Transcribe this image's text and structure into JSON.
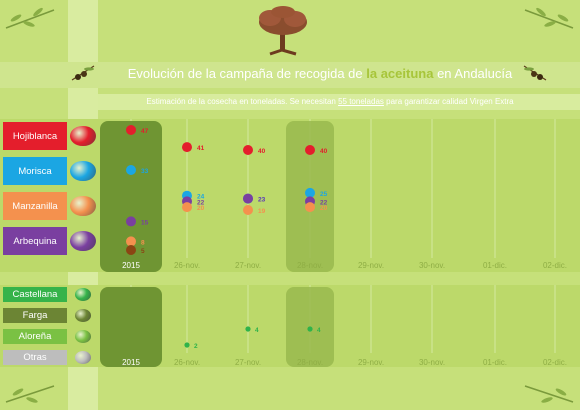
{
  "title_parts": [
    "Evolución de la campaña de recogida de ",
    "la aceituna",
    " en Andalucía"
  ],
  "subtitle_parts": [
    "Estimación de la cosecha en toneladas. Se necesitan ",
    "55 toneladas",
    " para garantizar calidad Virgen Extra"
  ],
  "categories_top": [
    {
      "label": "Hojiblanca",
      "color": "#e41e2c"
    },
    {
      "label": "Morisca",
      "color": "#1ba6e3"
    },
    {
      "label": "Manzanilla",
      "color": "#f4914e"
    },
    {
      "label": "Arbequina",
      "color": "#7a3fa0"
    }
  ],
  "categories_bottom": [
    {
      "label": "Castellana",
      "color": "#35b34a"
    },
    {
      "label": "Farga",
      "color": "#6c8534"
    },
    {
      "label": "Aloreña",
      "color": "#7ac143"
    },
    {
      "label": "Otras",
      "color": "#bdbdbd"
    }
  ],
  "colors": {
    "background": "#c6e07a",
    "highlight_column": "#7fa03a",
    "hojiblanca": "#e41e2c",
    "morisca": "#1ba6e3",
    "manzanilla": "#f4914e",
    "arbequina": "#7a3fa0",
    "brown": "#8b4513",
    "green": "#2fb34a"
  },
  "chart_data": [
    {
      "type": "scatter",
      "x_categories": [
        "2015",
        "26-nov.",
        "27-nov.",
        "28-nov.",
        "29-nov.",
        "30-nov.",
        "01-dic.",
        "02-dic."
      ],
      "series": [
        {
          "name": "Hojiblanca",
          "color": "#e41e2c",
          "values": [
            47,
            41,
            40,
            40,
            null,
            null,
            null,
            null
          ]
        },
        {
          "name": "Morisca",
          "color": "#1ba6e3",
          "values": [
            33,
            24,
            23,
            25,
            null,
            null,
            null,
            null
          ]
        },
        {
          "name": "Arbequina",
          "color": "#7a3fa0",
          "values": [
            15,
            22,
            23,
            22,
            null,
            null,
            null,
            null
          ]
        },
        {
          "name": "Manzanilla",
          "color": "#f4914e",
          "values": [
            8,
            20,
            19,
            20,
            null,
            null,
            null,
            null
          ]
        },
        {
          "name": "",
          "color": "#8b4513",
          "values": [
            5,
            null,
            null,
            null,
            null,
            null,
            null,
            null
          ]
        }
      ],
      "highlighted_categories": [
        "2015",
        "28-nov."
      ]
    },
    {
      "type": "scatter",
      "x_categories": [
        "2015",
        "26-nov.",
        "27-nov.",
        "28-nov.",
        "29-nov.",
        "30-nov.",
        "01-dic.",
        "02-dic."
      ],
      "series": [
        {
          "name": "Castellana",
          "color": "#2fb34a",
          "values": [
            null,
            2,
            4,
            4,
            null,
            null,
            null,
            null
          ]
        }
      ],
      "highlighted_categories": [
        "2015",
        "28-nov."
      ]
    }
  ]
}
